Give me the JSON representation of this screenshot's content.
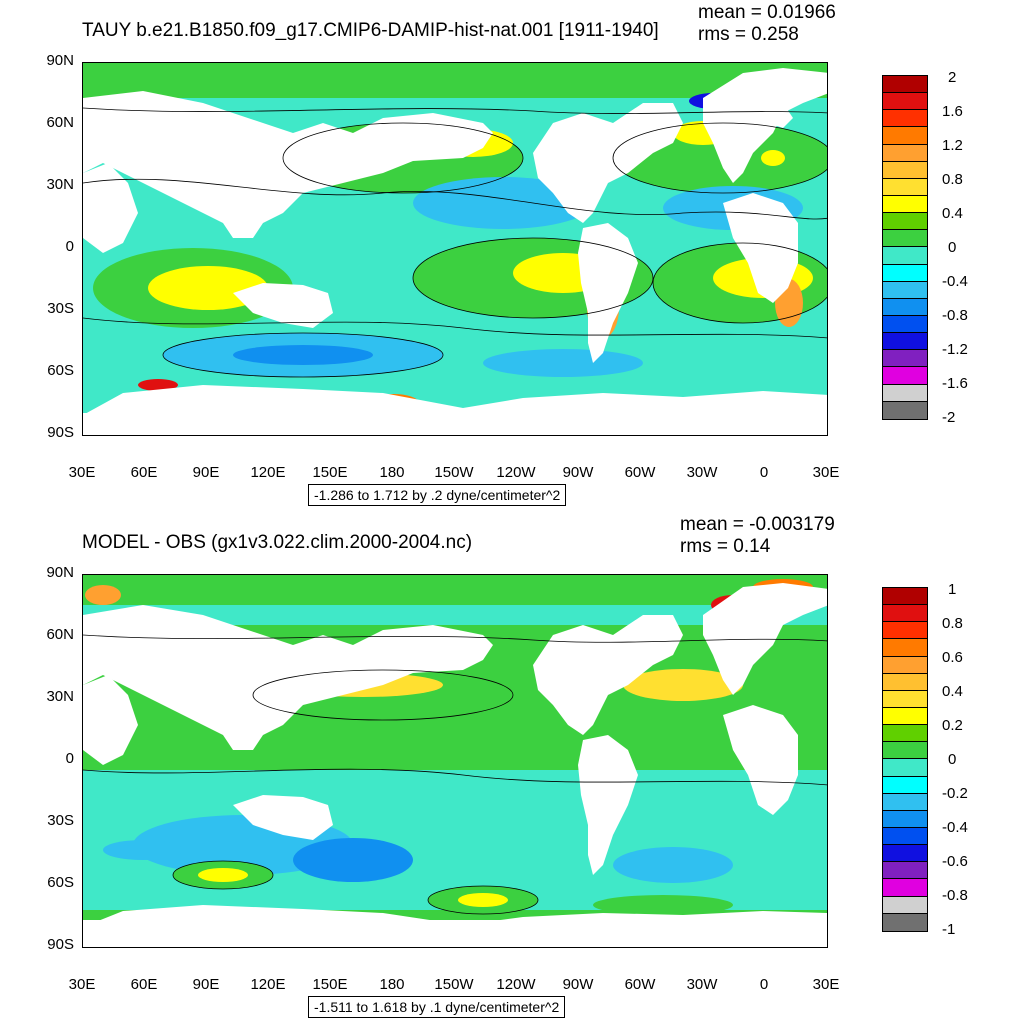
{
  "top": {
    "title": "TAUY b.e21.B1850.f09_g17.CMIP6-DAMIP-hist-nat.001 [1911-1940]",
    "mean": "mean = 0.01966",
    "rms": "rms = 0.258",
    "summary": "-1.286 to 1.712 by .2 dyne/centimeter^2",
    "colorbar_labels": [
      "2",
      "1.6",
      "1.2",
      "0.8",
      "0.4",
      "0",
      "-0.4",
      "-0.8",
      "-1.2",
      "-1.6",
      "-2"
    ],
    "colorbar_colors": [
      "#b00000",
      "#e01010",
      "#ff3000",
      "#ff7a00",
      "#ffa030",
      "#ffc030",
      "#ffe030",
      "#ffff00",
      "#60d000",
      "#3cd040",
      "#40e8c8",
      "#00ffff",
      "#30c0f0",
      "#1090f0",
      "#0050f0",
      "#1010e0",
      "#8020c0",
      "#e000e0",
      "#d0d0d0",
      "#707070"
    ]
  },
  "bottom": {
    "title": "MODEL - OBS (gx1v3.022.clim.2000-2004.nc)",
    "mean": "mean = -0.003179",
    "rms": "rms = 0.14",
    "summary": "-1.511 to 1.618 by .1 dyne/centimeter^2",
    "colorbar_labels": [
      "1",
      "0.8",
      "0.6",
      "0.4",
      "0.2",
      "0",
      "-0.2",
      "-0.4",
      "-0.6",
      "-0.8",
      "-1"
    ],
    "colorbar_colors": [
      "#b00000",
      "#e01010",
      "#ff3000",
      "#ff7a00",
      "#ffa030",
      "#ffc030",
      "#ffe030",
      "#ffff00",
      "#60d000",
      "#3cd040",
      "#40e8c8",
      "#00ffff",
      "#30c0f0",
      "#1090f0",
      "#0050f0",
      "#1010e0",
      "#8020c0",
      "#e000e0",
      "#d0d0d0",
      "#707070"
    ]
  },
  "lat_labels": [
    "90N",
    "60N",
    "30N",
    "0",
    "30S",
    "60S",
    "90S"
  ],
  "lon_labels": [
    "30E",
    "60E",
    "90E",
    "120E",
    "150E",
    "180",
    "150W",
    "120W",
    "90W",
    "60W",
    "30W",
    "0",
    "30E"
  ]
}
